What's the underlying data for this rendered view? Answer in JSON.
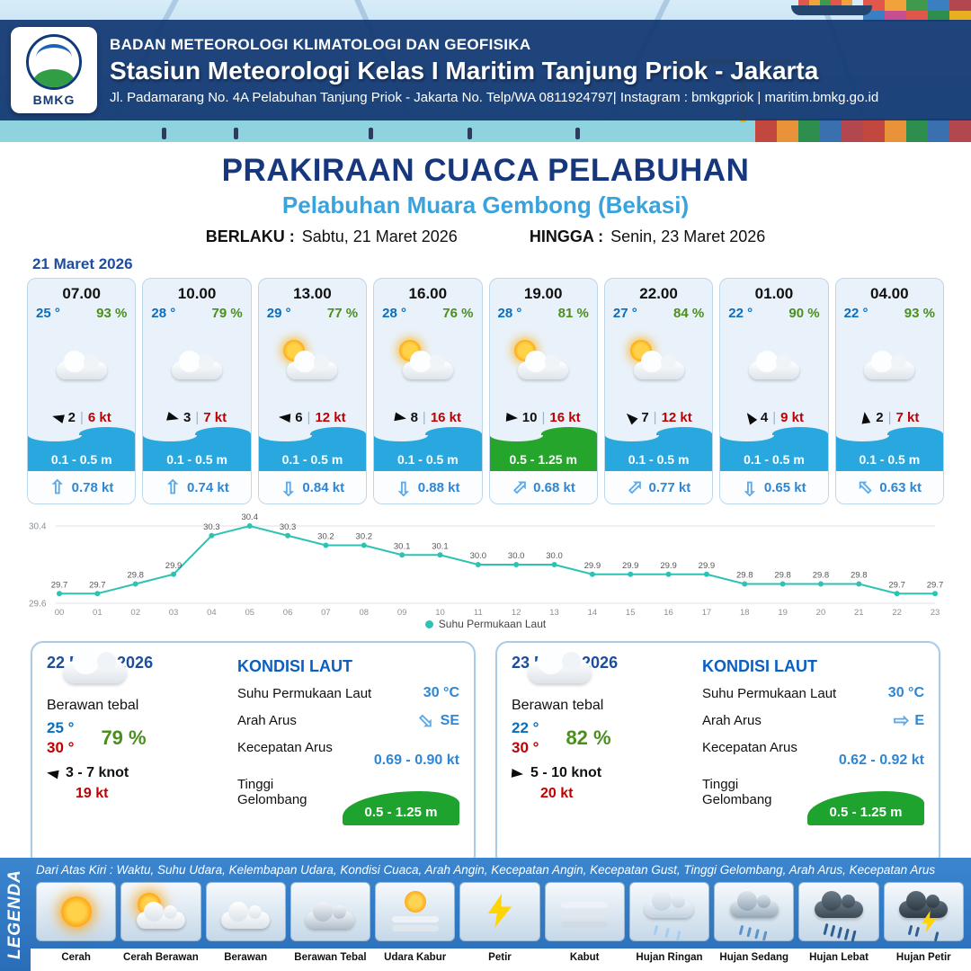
{
  "header": {
    "org": "BADAN METEOROLOGI KLIMATOLOGI DAN GEOFISIKA",
    "station": "Stasiun Meteorologi Kelas I Maritim Tanjung Priok - Jakarta",
    "address": "Jl. Padamarang No. 4A Pelabuhan Tanjung Priok - Jakarta No. Telp/WA 0811924797| Instagram : bmkgpriok | maritim.bmkg.go.id",
    "logo_text": "BMKG"
  },
  "title": {
    "main": "PRAKIRAAN CUACA PELABUHAN",
    "subtitle": "Pelabuhan Muara Gembong (Bekasi)",
    "valid_from_label": "BERLAKU :",
    "valid_from": "Sabtu, 21 Maret 2026",
    "valid_to_label": "HINGGA :",
    "valid_to": "Senin, 23 Maret 2026"
  },
  "forecast_date": "21 Maret 2026",
  "icons": {
    "current_arrow": "⇧"
  },
  "cards": [
    {
      "time": "07.00",
      "temp": "25 °",
      "humidity": "93 %",
      "icon": "cloud",
      "wind_value": "2",
      "wind_speed": "6 kt",
      "wind_deg": 195,
      "wave": "0.1 - 0.5 m",
      "wave_color": "blue",
      "current_speed": "0.78 kt",
      "current_deg": 0
    },
    {
      "time": "10.00",
      "temp": "28 °",
      "humidity": "79 %",
      "icon": "cloud",
      "wind_value": "3",
      "wind_speed": "7 kt",
      "wind_deg": 15,
      "wave": "0.1 - 0.5 m",
      "wave_color": "blue",
      "current_speed": "0.74 kt",
      "current_deg": 0
    },
    {
      "time": "13.00",
      "temp": "29 °",
      "humidity": "77 %",
      "icon": "sun-cloud",
      "wind_value": "6",
      "wind_speed": "12 kt",
      "wind_deg": 185,
      "wave": "0.1 - 0.5 m",
      "wave_color": "blue",
      "current_speed": "0.84 kt",
      "current_deg": 180
    },
    {
      "time": "16.00",
      "temp": "28 °",
      "humidity": "76 %",
      "icon": "sun-cloud",
      "wind_value": "8",
      "wind_speed": "16 kt",
      "wind_deg": 10,
      "wave": "0.1 - 0.5 m",
      "wave_color": "blue",
      "current_speed": "0.88 kt",
      "current_deg": 180
    },
    {
      "time": "19.00",
      "temp": "28 °",
      "humidity": "81 %",
      "icon": "sun-cloud",
      "wind_value": "10",
      "wind_speed": "16 kt",
      "wind_deg": 5,
      "wave": "0.5 - 1.25 m",
      "wave_color": "green",
      "current_speed": "0.68 kt",
      "current_deg": 45
    },
    {
      "time": "22.00",
      "temp": "27 °",
      "humidity": "84 %",
      "icon": "sun-cloud",
      "wind_value": "7",
      "wind_speed": "12 kt",
      "wind_deg": 225,
      "wave": "0.1 - 0.5 m",
      "wave_color": "blue",
      "current_speed": "0.77 kt",
      "current_deg": 45
    },
    {
      "time": "01.00",
      "temp": "22 °",
      "humidity": "90 %",
      "icon": "cloud",
      "wind_value": "4",
      "wind_speed": "9 kt",
      "wind_deg": 235,
      "wave": "0.1 - 0.5 m",
      "wave_color": "blue",
      "current_speed": "0.65 kt",
      "current_deg": 180
    },
    {
      "time": "04.00",
      "temp": "22 °",
      "humidity": "93 %",
      "icon": "cloud",
      "wind_value": "2",
      "wind_speed": "7 kt",
      "wind_deg": 262,
      "wave": "0.1 - 0.5 m",
      "wave_color": "blue",
      "current_speed": "0.63 kt",
      "current_deg": 315
    }
  ],
  "chart_data": {
    "type": "line",
    "title": "",
    "series_name": "Suhu Permukaan Laut",
    "x": [
      "00",
      "01",
      "02",
      "03",
      "04",
      "05",
      "06",
      "07",
      "08",
      "09",
      "10",
      "11",
      "12",
      "13",
      "14",
      "15",
      "16",
      "17",
      "18",
      "19",
      "20",
      "21",
      "22",
      "23"
    ],
    "values": [
      29.7,
      29.7,
      29.8,
      29.9,
      30.3,
      30.4,
      30.3,
      30.2,
      30.2,
      30.1,
      30.1,
      30.0,
      30.0,
      30.0,
      29.9,
      29.9,
      29.9,
      29.9,
      29.8,
      29.8,
      29.8,
      29.8,
      29.7,
      29.7
    ],
    "ylim": [
      29.6,
      30.4
    ],
    "line_color": "#2cc3b4",
    "legend_position": "bottom",
    "grid": "minimal"
  },
  "day_cards": [
    {
      "date": "22 Maret 2026",
      "condition": "Berawan tebal",
      "temp_min": "25 °",
      "temp_max": "30 °",
      "humidity": "79 %",
      "wind_range": "3 - 7 knot",
      "wind_deg": 190,
      "gust": "19 kt",
      "sea": {
        "title": "KONDISI LAUT",
        "sst_label": "Suhu Permukaan Laut",
        "sst": "30 °C",
        "dir_label": "Arah Arus",
        "dir": "SE",
        "dir_deg": 135,
        "speed_label": "Kecepatan Arus",
        "speed": "0.69 - 0.90 kt",
        "wave_label": "Tinggi Gelombang",
        "wave": "0.5 - 1.25 m"
      }
    },
    {
      "date": "23 Maret 2026",
      "condition": "Berawan tebal",
      "temp_min": "22 °",
      "temp_max": "30 °",
      "humidity": "82 %",
      "wind_range": "5 - 10 knot",
      "wind_deg": 5,
      "gust": "20 kt",
      "sea": {
        "title": "KONDISI LAUT",
        "sst_label": "Suhu Permukaan Laut",
        "sst": "30 °C",
        "dir_label": "Arah Arus",
        "dir": "E",
        "dir_deg": 90,
        "speed_label": "Kecepatan Arus",
        "speed": "0.62 - 0.92 kt",
        "wave_label": "Tinggi Gelombang",
        "wave": "0.5 - 1.25 m"
      }
    }
  ],
  "legend": {
    "header": "Dari Atas Kiri : Waktu, Suhu Udara, Kelembapan Udara, Kondisi Cuaca, Arah Angin, Kecepatan Angin, Kecepatan Gust, Tinggi Gelombang, Arah Arus, Kecepatan Arus",
    "side_label": "LEGENDA",
    "items": [
      {
        "label": "Cerah",
        "icon": "sun"
      },
      {
        "label": "Cerah Berawan",
        "icon": "sun-cloud"
      },
      {
        "label": "Berawan",
        "icon": "cloud"
      },
      {
        "label": "Berawan Tebal",
        "icon": "cloud-thick"
      },
      {
        "label": "Udara Kabur",
        "icon": "haze"
      },
      {
        "label": "Petir",
        "icon": "bolt"
      },
      {
        "label": "Kabut",
        "icon": "fog"
      },
      {
        "label": "Hujan Ringan",
        "icon": "rain-light"
      },
      {
        "label": "Hujan Sedang",
        "icon": "rain-mid"
      },
      {
        "label": "Hujan Lebat",
        "icon": "rain-heavy"
      },
      {
        "label": "Hujan Petir",
        "icon": "storm"
      }
    ]
  },
  "colors": {
    "accent_blue": "#1c4d9e",
    "temp_blue": "#0a6ebd",
    "humidity_green": "#4a8f1d",
    "alert_red": "#c00000",
    "wave_blue": "#29a8e0",
    "wave_green": "#25a52b",
    "footer_blue": "#2e7ac5"
  }
}
